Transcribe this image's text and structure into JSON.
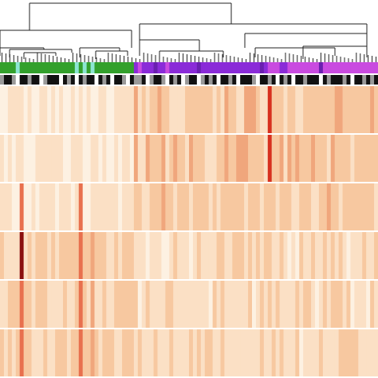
{
  "chart_data": {
    "type": "heatmap",
    "title": "",
    "xlabel": "",
    "ylabel": "",
    "legend": "none",
    "grid": false,
    "n_columns": 96,
    "n_rows": 6,
    "row_group_sizes": [
      3,
      3
    ],
    "color_scale": [
      "#fdf1e2",
      "#fbe0c5",
      "#f7c8a0",
      "#f0a67c",
      "#e8704e",
      "#d7301f",
      "#8b0f0f"
    ],
    "annotation_row_1": {
      "categories": {
        "a": "#33a02c",
        "b": "#8de6d3",
        "c": "#8a2bd8",
        "d": "#c94be0",
        "e": "#6a1fb0"
      },
      "values": [
        "a",
        "a",
        "a",
        "a",
        "b",
        "a",
        "a",
        "a",
        "a",
        "a",
        "a",
        "a",
        "a",
        "a",
        "a",
        "a",
        "a",
        "a",
        "a",
        "b",
        "a",
        "b",
        "a",
        "b",
        "a",
        "a",
        "a",
        "a",
        "a",
        "a",
        "a",
        "a",
        "a",
        "a",
        "c",
        "d",
        "c",
        "c",
        "c",
        "e",
        "c",
        "c",
        "d",
        "c",
        "c",
        "c",
        "c",
        "c",
        "c",
        "c",
        "e",
        "c",
        "c",
        "c",
        "c",
        "c",
        "c",
        "c",
        "c",
        "c",
        "c",
        "c",
        "c",
        "c",
        "c",
        "c",
        "e",
        "c",
        "d",
        "d",
        "d",
        "c",
        "c",
        "d",
        "d",
        "d",
        "d",
        "d",
        "d",
        "d",
        "d",
        "e",
        "d",
        "d",
        "d",
        "d",
        "d",
        "d",
        "d",
        "d",
        "d",
        "d",
        "d",
        "d",
        "d",
        "d"
      ]
    },
    "annotation_row_2": {
      "categories": {
        "black": "#111111",
        "gray": "#9a9a9a",
        "white": "#ffffff"
      },
      "values": [
        "gray",
        "black",
        "black",
        "gray",
        "white",
        "black",
        "black",
        "gray",
        "black",
        "black",
        "white",
        "gray",
        "black",
        "black",
        "black",
        "white",
        "black",
        "gray",
        "black",
        "white",
        "black",
        "gray",
        "black",
        "black",
        "white",
        "black",
        "gray",
        "black",
        "white",
        "black",
        "black",
        "gray",
        "white",
        "black",
        "gray",
        "gray",
        "black",
        "white",
        "gray",
        "black",
        "black",
        "gray",
        "white",
        "black",
        "gray",
        "black",
        "white",
        "gray",
        "black",
        "black",
        "white",
        "gray",
        "black",
        "gray",
        "black",
        "white",
        "black",
        "black",
        "gray",
        "black",
        "white",
        "black",
        "black",
        "black",
        "gray",
        "white",
        "black",
        "black",
        "gray",
        "black",
        "white",
        "black",
        "gray",
        "black",
        "white",
        "black",
        "black",
        "gray",
        "black",
        "black",
        "black",
        "white",
        "black",
        "gray",
        "black",
        "black",
        "black",
        "gray",
        "black",
        "white",
        "black",
        "black",
        "gray",
        "black",
        "gray",
        "black"
      ]
    }
  }
}
